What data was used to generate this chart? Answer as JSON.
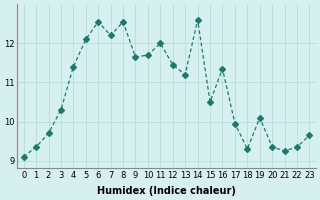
{
  "x": [
    0,
    1,
    2,
    3,
    4,
    5,
    6,
    7,
    8,
    9,
    10,
    11,
    12,
    13,
    14,
    15,
    16,
    17,
    18,
    19,
    20,
    21,
    22,
    23
  ],
  "y": [
    9.1,
    9.35,
    9.7,
    10.3,
    11.4,
    12.1,
    12.55,
    12.2,
    12.55,
    11.65,
    11.7,
    12.0,
    11.45,
    11.2,
    12.6,
    10.5,
    11.35,
    9.95,
    9.3,
    10.1,
    9.35,
    9.25,
    9.35,
    9.65
  ],
  "line_color": "#1a7a6e",
  "marker": "D",
  "marker_size": 3,
  "bg_color": "#d6f0ef",
  "grid_color": "#b0d8d5",
  "xlabel": "Humidex (Indice chaleur)",
  "ylim": [
    8.8,
    13.0
  ],
  "xlim": [
    -0.5,
    23.5
  ],
  "yticks": [
    9,
    10,
    11,
    12
  ],
  "xticks": [
    0,
    1,
    2,
    3,
    4,
    5,
    6,
    7,
    8,
    9,
    10,
    11,
    12,
    13,
    14,
    15,
    16,
    17,
    18,
    19,
    20,
    21,
    22,
    23
  ],
  "xtick_labels": [
    "0",
    "1",
    "2",
    "3",
    "4",
    "5",
    "6",
    "7",
    "8",
    "9",
    "10",
    "11",
    "12",
    "13",
    "14",
    "15",
    "16",
    "17",
    "18",
    "19",
    "20",
    "21",
    "22",
    "23"
  ],
  "title_fontsize": 7,
  "label_fontsize": 7,
  "tick_fontsize": 6
}
